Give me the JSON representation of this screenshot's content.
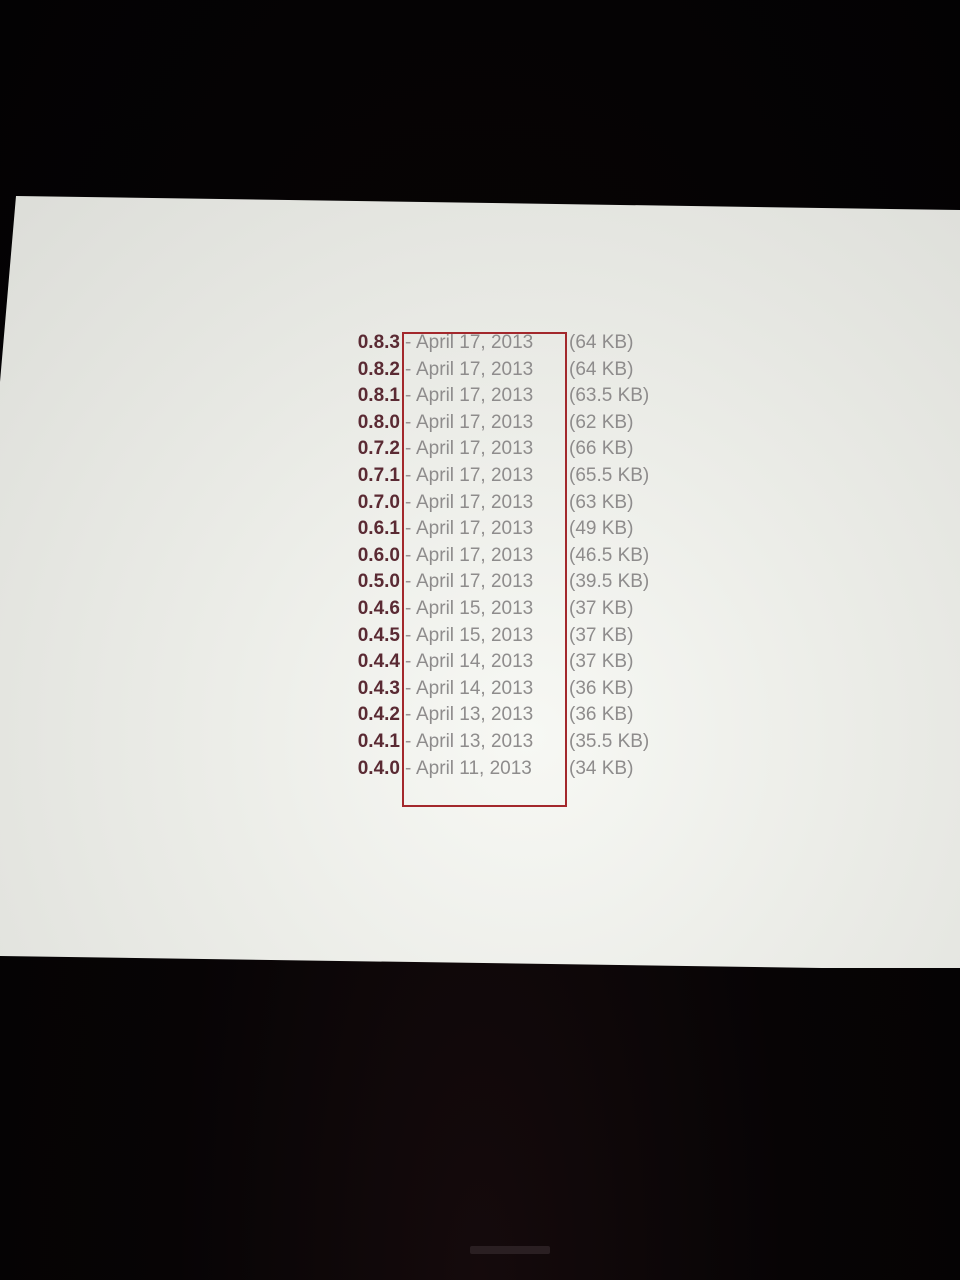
{
  "releases": [
    {
      "version": "0.8.3",
      "separator": "-",
      "date": "April 17, 2013",
      "size": "(64 KB)"
    },
    {
      "version": "0.8.2",
      "separator": "-",
      "date": "April 17, 2013",
      "size": "(64 KB)"
    },
    {
      "version": "0.8.1",
      "separator": "-",
      "date": "April 17, 2013",
      "size": "(63.5 KB)"
    },
    {
      "version": "0.8.0",
      "separator": "-",
      "date": "April 17, 2013",
      "size": "(62 KB)"
    },
    {
      "version": "0.7.2",
      "separator": "-",
      "date": "April 17, 2013",
      "size": "(66 KB)"
    },
    {
      "version": "0.7.1",
      "separator": "-",
      "date": "April 17, 2013",
      "size": "(65.5 KB)"
    },
    {
      "version": "0.7.0",
      "separator": "-",
      "date": "April 17, 2013",
      "size": "(63 KB)"
    },
    {
      "version": "0.6.1",
      "separator": "-",
      "date": "April 17, 2013",
      "size": "(49 KB)"
    },
    {
      "version": "0.6.0",
      "separator": "-",
      "date": "April 17, 2013",
      "size": "(46.5 KB)"
    },
    {
      "version": "0.5.0",
      "separator": "-",
      "date": "April 17, 2013",
      "size": "(39.5 KB)"
    },
    {
      "version": "0.4.6",
      "separator": "-",
      "date": "April 15, 2013",
      "size": "(37 KB)"
    },
    {
      "version": "0.4.5",
      "separator": "-",
      "date": "April 15, 2013",
      "size": "(37 KB)"
    },
    {
      "version": "0.4.4",
      "separator": "-",
      "date": "April 14, 2013",
      "size": "(37 KB)"
    },
    {
      "version": "0.4.3",
      "separator": "-",
      "date": "April 14, 2013",
      "size": "(36 KB)"
    },
    {
      "version": "0.4.2",
      "separator": "-",
      "date": "April 13, 2013",
      "size": "(36 KB)"
    },
    {
      "version": "0.4.1",
      "separator": "-",
      "date": "April 13, 2013",
      "size": "(35.5 KB)"
    },
    {
      "version": "0.4.0",
      "separator": "-",
      "date": "April 11, 2013",
      "size": "(34 KB)"
    }
  ],
  "colors": {
    "version_text": "#5a2a33",
    "date_text": "#8e8c8c",
    "highlight_border": "#a3282c",
    "screen": "#ebece7",
    "background": "#060405"
  }
}
